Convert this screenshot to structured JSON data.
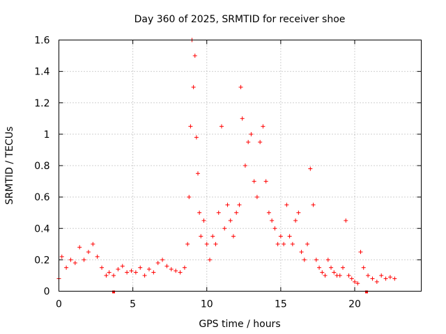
{
  "chart_data": {
    "type": "scatter",
    "title": "Day 360 of 2025, SRMTID for receiver shoe",
    "xlabel": "GPS time / hours",
    "ylabel": "SRMTID / TECUs",
    "xlim": [
      0,
      24.5
    ],
    "ylim": [
      0,
      1.6
    ],
    "x_ticks": [
      0,
      5,
      10,
      15,
      20
    ],
    "x_tick_labels": [
      "0",
      "5",
      "10",
      "15",
      "20"
    ],
    "y_ticks": [
      0,
      0.2,
      0.4,
      0.6,
      0.8,
      1.0,
      1.2,
      1.4,
      1.6
    ],
    "y_tick_labels": [
      "0",
      "0.2",
      "0.4",
      "0.6",
      "0.8",
      "1",
      "1.2",
      "1.4",
      "1.6"
    ],
    "grid": true,
    "marker": "plus",
    "color": "#ff0000",
    "gap_markers_x": [
      3.7,
      20.8
    ],
    "series": [
      {
        "name": "SRMTID",
        "segments": [
          {
            "x": [
              0.0,
              0.2,
              0.5,
              0.8,
              1.1,
              1.4,
              1.7,
              2.0,
              2.3,
              2.6,
              2.9,
              3.2
            ],
            "y": [
              0.08,
              0.22,
              0.15,
              0.2,
              0.18,
              0.28,
              0.2,
              0.25,
              0.3,
              0.22,
              0.15,
              0.1
            ]
          },
          {
            "x": [
              3.4,
              3.7,
              4.0,
              4.3,
              4.6,
              4.9,
              5.2,
              5.5,
              5.8,
              6.1,
              6.4,
              6.7,
              7.0,
              7.3,
              7.6,
              7.9,
              8.2,
              8.5
            ],
            "y": [
              0.12,
              0.1,
              0.14,
              0.16,
              0.12,
              0.13,
              0.12,
              0.15,
              0.1,
              0.14,
              0.12,
              0.18,
              0.2,
              0.16,
              0.14,
              0.13,
              0.12,
              0.15
            ]
          },
          {
            "x": [
              8.7,
              8.8,
              8.9,
              9.0,
              9.1,
              9.2,
              9.3,
              9.4,
              9.5,
              9.6,
              9.8,
              10.0,
              10.2,
              10.4,
              10.6,
              10.8,
              11.0,
              11.2,
              11.4,
              11.6,
              11.8,
              12.0,
              12.2,
              12.3,
              12.4,
              12.6,
              12.8,
              13.0,
              13.2,
              13.4,
              13.6,
              13.8,
              14.0,
              14.2,
              14.4,
              14.6,
              14.8,
              15.0
            ],
            "y": [
              0.3,
              0.6,
              1.05,
              1.6,
              1.3,
              1.5,
              0.98,
              0.75,
              0.5,
              0.35,
              0.45,
              0.3,
              0.2,
              0.35,
              0.3,
              0.5,
              1.05,
              0.4,
              0.55,
              0.45,
              0.35,
              0.5,
              0.55,
              1.3,
              1.1,
              0.8,
              0.95,
              1.0,
              0.7,
              0.6,
              0.95,
              1.05,
              0.7,
              0.5,
              0.45,
              0.4,
              0.3,
              0.35
            ]
          },
          {
            "x": [
              15.2,
              15.4,
              15.6,
              15.8,
              16.0,
              16.2,
              16.4,
              16.6,
              16.8,
              17.0,
              17.2,
              17.4,
              17.6,
              17.8,
              18.0,
              18.2,
              18.4,
              18.6,
              18.8,
              19.0,
              19.2,
              19.4,
              19.6,
              19.8,
              20.0,
              20.2
            ],
            "y": [
              0.3,
              0.55,
              0.35,
              0.3,
              0.45,
              0.5,
              0.25,
              0.2,
              0.3,
              0.78,
              0.55,
              0.2,
              0.15,
              0.12,
              0.1,
              0.2,
              0.15,
              0.12,
              0.1,
              0.1,
              0.15,
              0.45,
              0.1,
              0.08,
              0.06,
              0.05
            ]
          },
          {
            "x": [
              20.4,
              20.6,
              20.9,
              21.2,
              21.5,
              21.8,
              22.1,
              22.4,
              22.7
            ],
            "y": [
              0.25,
              0.15,
              0.1,
              0.08,
              0.06,
              0.1,
              0.08,
              0.09,
              0.08
            ]
          }
        ]
      }
    ]
  }
}
